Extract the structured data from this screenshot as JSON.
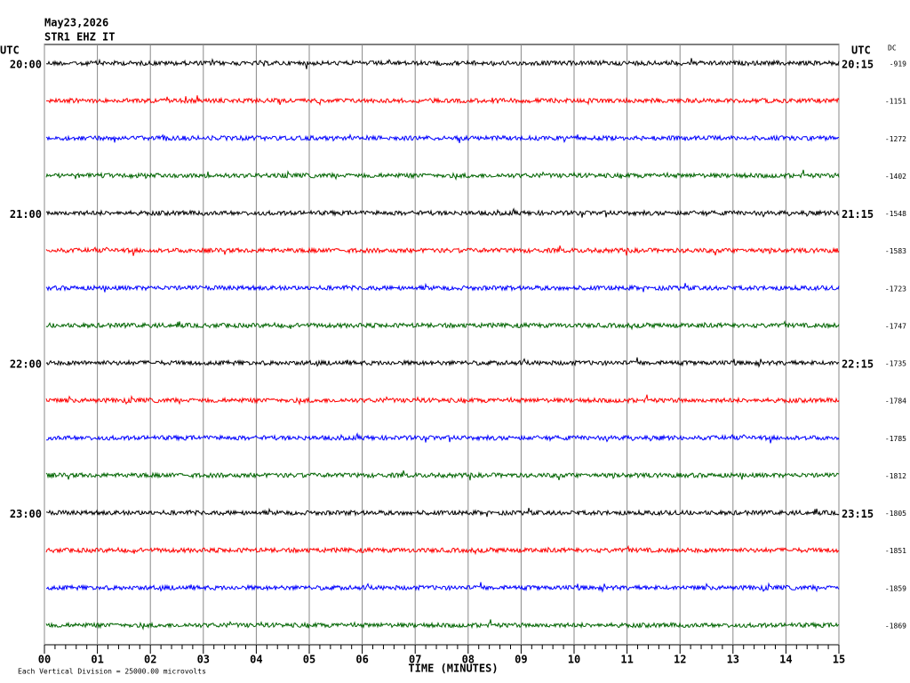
{
  "header": {
    "date": "May23,2026",
    "station": "STR1 EHZ IT"
  },
  "chart_data": {
    "type": "helicorder",
    "x_label": "TIME (MINUTES)",
    "xlim": [
      0,
      15
    ],
    "xticks": [
      {
        "value": 0,
        "label": "00"
      },
      {
        "value": 1,
        "label": "01"
      },
      {
        "value": 2,
        "label": "02"
      },
      {
        "value": 3,
        "label": "03"
      },
      {
        "value": 4,
        "label": "04"
      },
      {
        "value": 5,
        "label": "05"
      },
      {
        "value": 6,
        "label": "06"
      },
      {
        "value": 7,
        "label": "07"
      },
      {
        "value": 8,
        "label": "08"
      },
      {
        "value": 9,
        "label": "09"
      },
      10,
      11,
      12,
      13,
      14,
      15
    ],
    "left_axis_label": "UTC",
    "right_axis_label": "UTC",
    "dc_label": "DC",
    "rows": [
      {
        "left": "20:00",
        "right": "20:15",
        "dc": -919,
        "color": "#000000"
      },
      {
        "left": null,
        "right": null,
        "dc": -1151,
        "color": "#ff0000"
      },
      {
        "left": null,
        "right": null,
        "dc": -1272,
        "color": "#0000ff"
      },
      {
        "left": null,
        "right": null,
        "dc": -1402,
        "color": "#006400"
      },
      {
        "left": "21:00",
        "right": "21:15",
        "dc": -1548,
        "color": "#000000"
      },
      {
        "left": null,
        "right": null,
        "dc": -1583,
        "color": "#ff0000"
      },
      {
        "left": null,
        "right": null,
        "dc": -1723,
        "color": "#0000ff"
      },
      {
        "left": null,
        "right": null,
        "dc": -1747,
        "color": "#006400"
      },
      {
        "left": "22:00",
        "right": "22:15",
        "dc": -1735,
        "color": "#000000"
      },
      {
        "left": null,
        "right": null,
        "dc": -1784,
        "color": "#ff0000"
      },
      {
        "left": null,
        "right": null,
        "dc": -1785,
        "color": "#0000ff"
      },
      {
        "left": null,
        "right": null,
        "dc": -1812,
        "color": "#006400"
      },
      {
        "left": "23:00",
        "right": "23:15",
        "dc": -1805,
        "color": "#000000"
      },
      {
        "left": null,
        "right": null,
        "dc": -1851,
        "color": "#ff0000"
      },
      {
        "left": null,
        "right": null,
        "dc": -1859,
        "color": "#0000ff"
      },
      {
        "left": null,
        "right": null,
        "dc": -1869,
        "color": "#006400"
      }
    ],
    "footer": "Each Vertical Division = 25000.00 microvolts"
  }
}
